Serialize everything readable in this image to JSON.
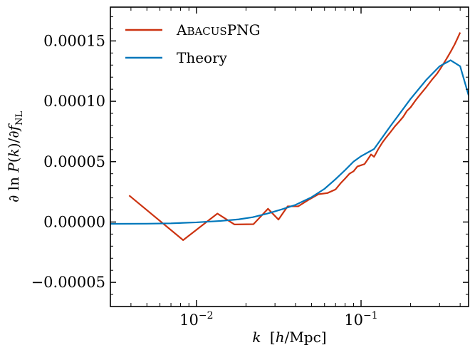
{
  "chart_data": {
    "type": "line",
    "xscale": "log",
    "xlim": [
      0.003,
      0.45
    ],
    "ylim": [
      -7e-05,
      0.000178
    ],
    "xlabel": "k [h/Mpc]",
    "ylabel": "∂ ln P(k)/∂f_NL",
    "xticks": [
      {
        "value": 0.01,
        "base": "10",
        "exp": "−2"
      },
      {
        "value": 0.1,
        "base": "10",
        "exp": "−1"
      }
    ],
    "yticks": [
      {
        "value": -5e-05,
        "label": "−0.00005"
      },
      {
        "value": 0.0,
        "label": "0.00000"
      },
      {
        "value": 5e-05,
        "label": "0.00005"
      },
      {
        "value": 0.0001,
        "label": "0.00010"
      },
      {
        "value": 0.00015,
        "label": "0.00015"
      }
    ],
    "grid": false,
    "legend_position": "top-left",
    "series": [
      {
        "name": "AbacusPNG",
        "color": "#cc3311",
        "x": [
          0.0039,
          0.0083,
          0.0134,
          0.017,
          0.0222,
          0.0272,
          0.0315,
          0.0358,
          0.0415,
          0.0475,
          0.055,
          0.0625,
          0.07,
          0.075,
          0.08,
          0.085,
          0.09,
          0.095,
          0.1,
          0.105,
          0.11,
          0.115,
          0.12,
          0.128,
          0.135,
          0.142,
          0.15,
          0.16,
          0.17,
          0.18,
          0.19,
          0.2,
          0.215,
          0.23,
          0.25,
          0.27,
          0.29,
          0.31,
          0.33,
          0.35,
          0.37,
          0.385,
          0.4
        ],
        "y": [
          2.2e-05,
          -1.5e-05,
          7e-06,
          -2e-06,
          -1.8e-06,
          1.1e-05,
          2e-06,
          1.3e-05,
          1.3e-05,
          1.8e-05,
          2.3e-05,
          2.4e-05,
          2.7e-05,
          3.2e-05,
          3.6e-05,
          4e-05,
          4.2e-05,
          4.6e-05,
          4.7e-05,
          4.8e-05,
          5.2e-05,
          5.6e-05,
          5.4e-05,
          6.1e-05,
          6.6e-05,
          7e-05,
          7.4e-05,
          7.9e-05,
          8.3e-05,
          8.7e-05,
          9.2e-05,
          9.5e-05,
          0.000101,
          0.000106,
          0.000112,
          0.000118,
          0.000123,
          0.000129,
          0.000135,
          0.000141,
          0.000147,
          0.000152,
          0.000157
        ]
      },
      {
        "name": "Theory",
        "color": "#0077bb",
        "x": [
          0.003,
          0.005,
          0.007,
          0.01,
          0.014,
          0.018,
          0.022,
          0.027,
          0.033,
          0.04,
          0.05,
          0.06,
          0.07,
          0.08,
          0.09,
          0.1,
          0.12,
          0.15,
          0.2,
          0.25,
          0.3,
          0.35,
          0.4,
          0.45
        ],
        "y": [
          -1.5e-06,
          -1.4e-06,
          -1.1e-06,
          -3e-07,
          9e-07,
          2.2e-06,
          4e-06,
          7e-06,
          1.05e-05,
          1.42e-05,
          2.05e-05,
          2.75e-05,
          3.55e-05,
          4.3e-05,
          5e-05,
          5.45e-05,
          6.05e-05,
          7.9e-05,
          0.000102,
          0.000118,
          0.000129,
          0.000134,
          0.000129,
          0.000105
        ]
      }
    ]
  }
}
